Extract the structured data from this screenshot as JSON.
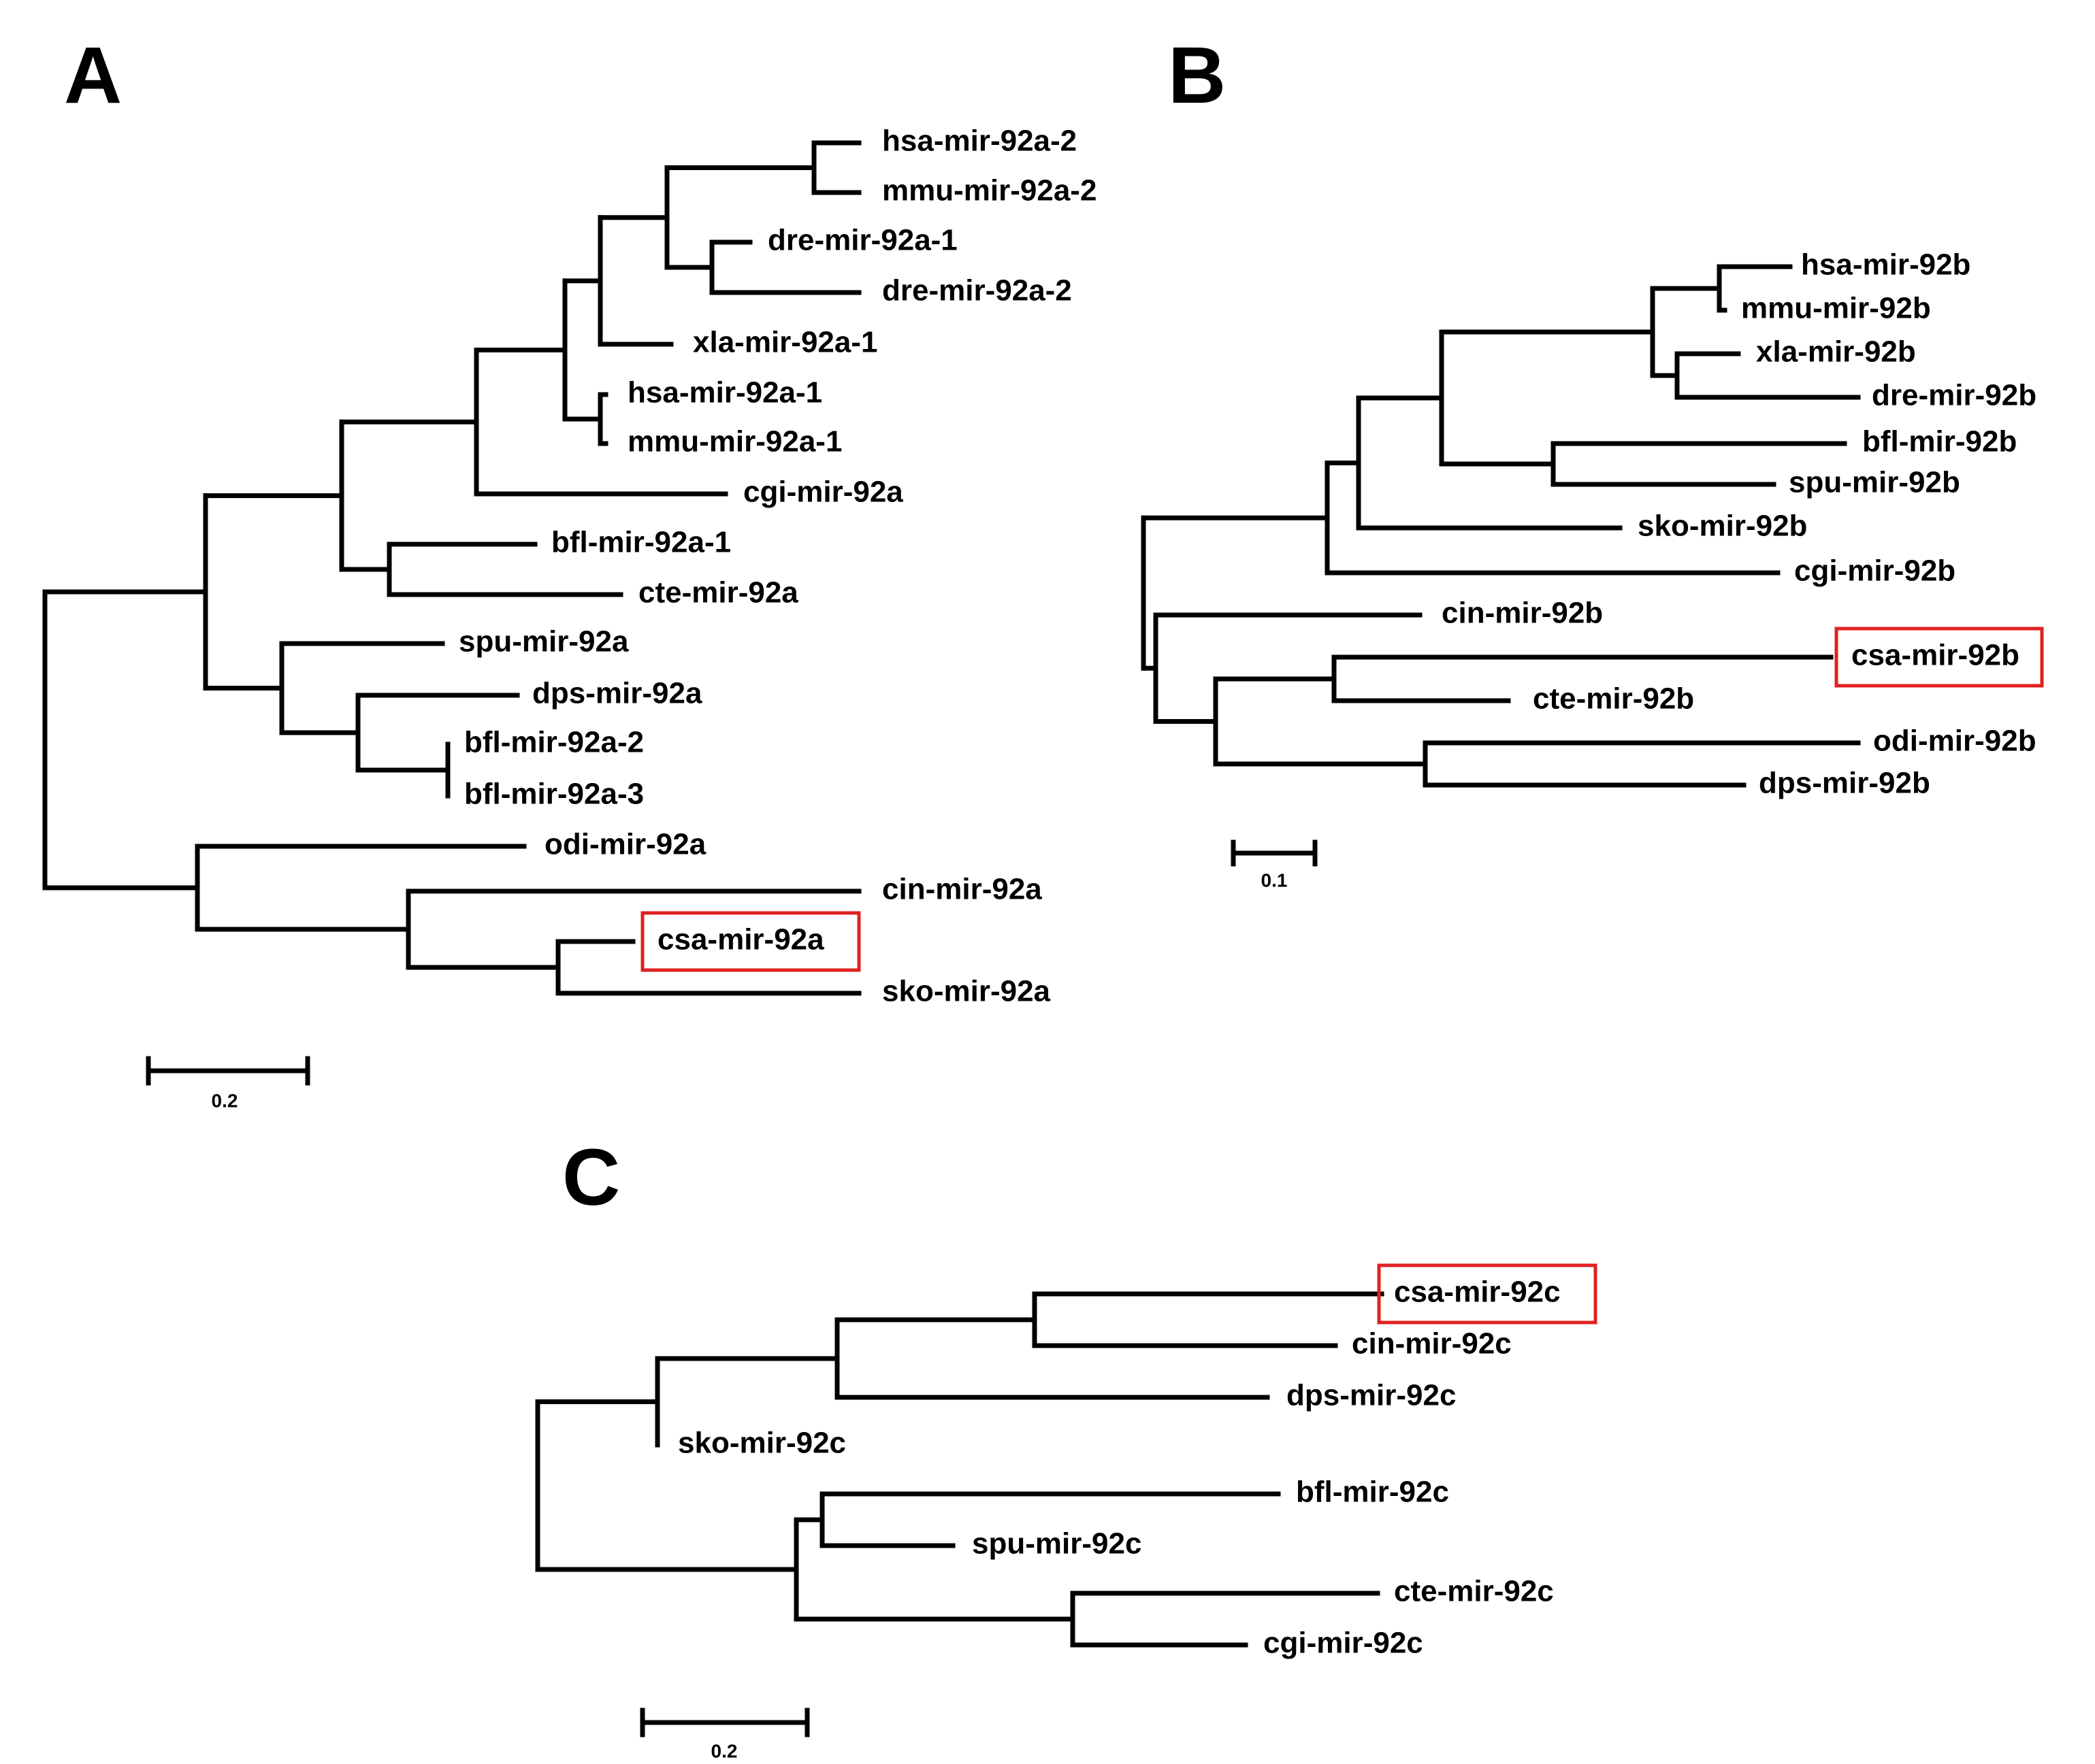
{
  "figure": {
    "highlight_color": "#e02020",
    "line_color": "#000000",
    "panels": [
      {
        "id": "A",
        "label": "A",
        "scale_bar": "0.2",
        "highlighted_leaf": "csa-mir-92a",
        "leaves": [
          "hsa-mir-92a-2",
          "mmu-mir-92a-2",
          "dre-mir-92a-1",
          "dre-mir-92a-2",
          "xla-mir-92a-1",
          "hsa-mir-92a-1",
          "mmu-mir-92a-1",
          "cgi-mir-92a",
          "bfl-mir-92a-1",
          "cte-mir-92a",
          "spu-mir-92a",
          "dps-mir-92a",
          "bfl-mir-92a-2",
          "bfl-mir-92a-3",
          "odi-mir-92a",
          "cin-mir-92a",
          "csa-mir-92a",
          "sko-mir-92a"
        ]
      },
      {
        "id": "B",
        "label": "B",
        "scale_bar": "0.1",
        "highlighted_leaf": "csa-mir-92b",
        "leaves": [
          "hsa-mir-92b",
          "mmu-mir-92b",
          "xla-mir-92b",
          "dre-mir-92b",
          "bfl-mir-92b",
          "spu-mir-92b",
          "sko-mir-92b",
          "cgi-mir-92b",
          "cin-mir-92b",
          "csa-mir-92b",
          "cte-mir-92b",
          "odi-mir-92b",
          "dps-mir-92b"
        ]
      },
      {
        "id": "C",
        "label": "C",
        "scale_bar": "0.2",
        "highlighted_leaf": "csa-mir-92c",
        "leaves": [
          "csa-mir-92c",
          "cin-mir-92c",
          "dps-mir-92c",
          "sko-mir-92c",
          "bfl-mir-92c",
          "spu-mir-92c",
          "cte-mir-92c",
          "cgi-mir-92c"
        ]
      }
    ]
  }
}
